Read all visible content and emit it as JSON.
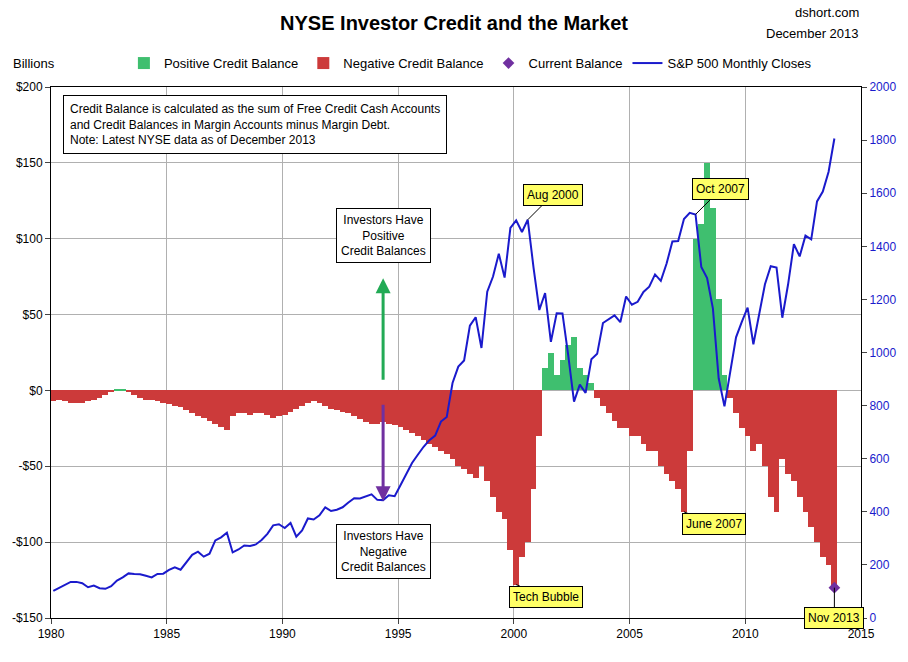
{
  "chart_data": {
    "type": "bar",
    "title": "NYSE Investor Credit and the Market",
    "subtitle": [
      "dshort.com",
      "December 2013"
    ],
    "ylabel": "Billions",
    "note_lines": [
      "Credit Balance is calculated as the sum of Free Credit Cash Accounts",
      "and Credit Balances in Margin Accounts minus Margin Debt.",
      "Note: Latest NYSE data as of December 2013"
    ],
    "boxes": [
      [
        "Investors Have",
        "Positive",
        "Credit Balances"
      ],
      [
        "Investors Have",
        "Negative",
        "Credit Balances"
      ]
    ],
    "annotations": [
      {
        "text": "Aug 2000",
        "x": 2000.6,
        "y": 1500,
        "axis": "y2"
      },
      {
        "text": "Oct 2007",
        "x": 2007.85,
        "y": 1520,
        "axis": "y2"
      },
      {
        "text": "June 2007",
        "x": 2007.35,
        "y": -80,
        "axis": "y"
      },
      {
        "text": "Tech Bubble",
        "x": 2000.1,
        "y": -128,
        "axis": "y"
      },
      {
        "text": "Nov 2013",
        "x": 2013.85,
        "y": -130,
        "axis": "y"
      }
    ],
    "x": [
      1980.1,
      1980.35,
      1980.6,
      1980.85,
      1981.1,
      1981.35,
      1981.6,
      1981.85,
      1982.1,
      1982.35,
      1982.6,
      1982.85,
      1983.1,
      1983.35,
      1983.6,
      1983.85,
      1984.1,
      1984.35,
      1984.6,
      1984.85,
      1985.1,
      1985.35,
      1985.6,
      1985.85,
      1986.1,
      1986.35,
      1986.6,
      1986.85,
      1987.1,
      1987.35,
      1987.6,
      1987.85,
      1988.1,
      1988.35,
      1988.6,
      1988.85,
      1989.1,
      1989.35,
      1989.6,
      1989.85,
      1990.1,
      1990.35,
      1990.6,
      1990.85,
      1991.1,
      1991.35,
      1991.6,
      1991.85,
      1992.1,
      1992.35,
      1992.6,
      1992.85,
      1993.1,
      1993.35,
      1993.6,
      1993.85,
      1994.1,
      1994.35,
      1994.6,
      1994.85,
      1995.1,
      1995.35,
      1995.6,
      1995.85,
      1996.1,
      1996.35,
      1996.6,
      1996.85,
      1997.1,
      1997.35,
      1997.6,
      1997.85,
      1998.1,
      1998.35,
      1998.6,
      1998.85,
      1999.1,
      1999.35,
      1999.6,
      1999.85,
      2000.1,
      2000.35,
      2000.6,
      2000.85,
      2001.1,
      2001.35,
      2001.6,
      2001.85,
      2002.1,
      2002.35,
      2002.6,
      2002.85,
      2003.1,
      2003.35,
      2003.6,
      2003.85,
      2004.1,
      2004.35,
      2004.6,
      2004.85,
      2005.1,
      2005.35,
      2005.6,
      2005.85,
      2006.1,
      2006.35,
      2006.6,
      2006.85,
      2007.1,
      2007.35,
      2007.6,
      2007.85,
      2008.1,
      2008.35,
      2008.6,
      2008.85,
      2009.1,
      2009.35,
      2009.6,
      2009.85,
      2010.1,
      2010.35,
      2010.6,
      2010.85,
      2011.1,
      2011.35,
      2011.6,
      2011.85,
      2012.1,
      2012.35,
      2012.6,
      2012.85,
      2013.1,
      2013.35,
      2013.6,
      2013.85
    ],
    "series": [
      {
        "name": "Positive Credit Balance",
        "color": "#3fbf6f",
        "values": [
          null,
          null,
          null,
          null,
          null,
          null,
          null,
          null,
          null,
          null,
          null,
          1,
          1,
          null,
          null,
          null,
          null,
          null,
          null,
          null,
          null,
          null,
          null,
          null,
          null,
          null,
          null,
          null,
          null,
          null,
          null,
          null,
          null,
          null,
          null,
          null,
          null,
          null,
          null,
          null,
          null,
          null,
          null,
          null,
          null,
          null,
          null,
          null,
          null,
          null,
          null,
          null,
          null,
          null,
          null,
          null,
          null,
          null,
          null,
          null,
          null,
          null,
          null,
          null,
          null,
          null,
          null,
          null,
          null,
          null,
          null,
          null,
          null,
          null,
          null,
          null,
          null,
          null,
          null,
          null,
          null,
          null,
          null,
          null,
          null,
          15,
          25,
          10,
          20,
          30,
          35,
          15,
          10,
          5,
          null,
          null,
          null,
          null,
          null,
          null,
          null,
          null,
          null,
          null,
          null,
          null,
          null,
          null,
          null,
          null,
          null,
          100,
          110,
          150,
          120,
          60,
          10,
          null,
          null,
          null,
          null,
          null,
          null,
          null,
          null,
          null,
          null,
          null,
          null,
          null,
          null,
          null,
          null,
          null,
          null,
          null
        ]
      },
      {
        "name": "Negative Credit Balance",
        "color": "#cc3a3a",
        "values": [
          -7,
          -6,
          -7,
          -8,
          -8,
          -8,
          -7,
          -6,
          -5,
          -3,
          -1,
          null,
          null,
          -1,
          -3,
          -5,
          -6,
          -6,
          -7,
          -8,
          -9,
          -10,
          -11,
          -13,
          -15,
          -17,
          -18,
          -20,
          -22,
          -24,
          -26,
          -17,
          -15,
          -15,
          -16,
          -15,
          -15,
          -16,
          -18,
          -17,
          -16,
          -14,
          -12,
          -10,
          -8,
          -7,
          -8,
          -10,
          -12,
          -13,
          -14,
          -15,
          -17,
          -19,
          -21,
          -22,
          -22,
          -21,
          -22,
          -23,
          -24,
          -26,
          -28,
          -30,
          -33,
          -35,
          -37,
          -40,
          -42,
          -45,
          -50,
          -52,
          -55,
          -58,
          -50,
          -60,
          -70,
          -80,
          -85,
          -105,
          -128,
          -110,
          -100,
          -65,
          -30,
          null,
          null,
          null,
          null,
          null,
          null,
          null,
          null,
          null,
          -5,
          -10,
          -15,
          -20,
          -25,
          -25,
          -30,
          -30,
          -35,
          -40,
          -40,
          -50,
          -55,
          -60,
          -65,
          -80,
          -40,
          null,
          null,
          null,
          null,
          null,
          null,
          -5,
          -15,
          -25,
          -30,
          -40,
          -35,
          -50,
          -70,
          -80,
          -45,
          -55,
          -60,
          -70,
          -80,
          -90,
          -100,
          -110,
          -115,
          -130
        ]
      },
      {
        "name": "Current Balance",
        "type": "scatter",
        "marker": "diamond",
        "color": "#7030a0",
        "x": [
          2013.85
        ],
        "values": [
          -130
        ]
      },
      {
        "name": "S&P 500 Monthly Closes",
        "type": "line",
        "axis": "y2",
        "color": "#1a1acc",
        "values": [
          102,
          114,
          125,
          136,
          136,
          131,
          116,
          122,
          112,
          110,
          120,
          141,
          153,
          168,
          166,
          165,
          159,
          153,
          166,
          167,
          181,
          191,
          182,
          211,
          238,
          250,
          231,
          242,
          292,
          304,
          321,
          247,
          258,
          273,
          271,
          277,
          294,
          317,
          349,
          353,
          339,
          358,
          306,
          330,
          375,
          371,
          387,
          417,
          403,
          408,
          417,
          435,
          451,
          450,
          458,
          466,
          445,
          444,
          462,
          459,
          500,
          544,
          584,
          615,
          645,
          670,
          687,
          740,
          757,
          885,
          947,
          970,
          1101,
          1133,
          1017,
          1229,
          1286,
          1372,
          1282,
          1469,
          1498,
          1454,
          1500,
          1320,
          1160,
          1224,
          1040,
          1148,
          1147,
          989,
          815,
          879,
          848,
          975,
          995,
          1111,
          1126,
          1140,
          1114,
          1211,
          1180,
          1191,
          1228,
          1248,
          1294,
          1270,
          1335,
          1418,
          1420,
          1503,
          1526,
          1520,
          1322,
          1280,
          1166,
          903,
          797,
          919,
          1057,
          1115,
          1169,
          1031,
          1141,
          1257,
          1325,
          1320,
          1131,
          1257,
          1408,
          1362,
          1440,
          1426,
          1569,
          1606,
          1681,
          1806
        ]
      }
    ],
    "xlim": [
      1980,
      2015
    ],
    "xticks": [
      1980,
      1985,
      1990,
      1995,
      2000,
      2005,
      2010,
      2015
    ],
    "ylim": [
      -150,
      200
    ],
    "yticks": [
      {
        "value": -150,
        "label": "-$150"
      },
      {
        "value": -100,
        "label": "-$100"
      },
      {
        "value": -50,
        "label": "-$50"
      },
      {
        "value": 0,
        "label": "$0"
      },
      {
        "value": 50,
        "label": "$50"
      },
      {
        "value": 100,
        "label": "$100"
      },
      {
        "value": 150,
        "label": "$150"
      },
      {
        "value": 200,
        "label": "$200"
      }
    ],
    "y2lim": [
      0,
      2000
    ],
    "y2ticks": [
      0,
      200,
      400,
      600,
      800,
      1000,
      1200,
      1400,
      1600,
      1800,
      2000
    ],
    "grid": true,
    "legend": "top"
  }
}
